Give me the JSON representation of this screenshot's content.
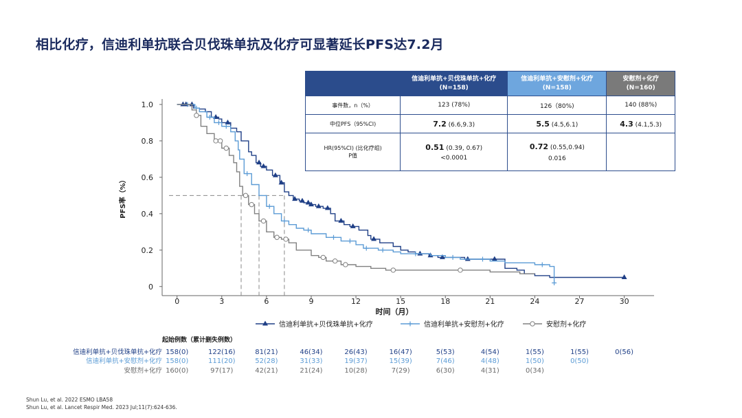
{
  "title": "相比化疗，信迪利单抗联合贝伐珠单抗及化疗可显著延长PFS达7.2月",
  "stats_table": {
    "headers": [
      "信迪利单抗+贝伐珠单抗+化疗",
      "(N=158)",
      "信迪利单抗+安慰剂+化疗",
      "(N=158)",
      "安慰剂+化疗",
      "(N=160)"
    ],
    "rows": [
      {
        "label": "事件数，n（%）",
        "c1": "123 (78%)",
        "c2": "126（80%)",
        "c3": "140 (88%)"
      },
      {
        "label": "中位PFS（95%CI)",
        "c1_main": "7.2",
        "c1_ci": "(6.6,9.3)",
        "c2_main": "5.5",
        "c2_ci": "(4.5,6.1)",
        "c3_main": "4.3",
        "c3_ci": "(4.1,5.3)"
      },
      {
        "label": "HR(95%CI) (比化疗组)",
        "label2": "P值",
        "c1_main": "0.51",
        "c1_ci": "(0.39, 0.67)",
        "c1_p": "<0.0001",
        "c2_main": "0.72",
        "c2_ci": "(0.55,0.94)",
        "c2_p": "0.016"
      }
    ]
  },
  "chart_data": {
    "type": "line",
    "title": "",
    "xlabel": "时间（月）",
    "ylabel": "PFS率（%）",
    "xlim": [
      -1,
      32
    ],
    "ylim": [
      -0.05,
      1.03
    ],
    "x_ticks": [
      0,
      3,
      6,
      9,
      12,
      15,
      18,
      21,
      24,
      27,
      30
    ],
    "y_ticks": [
      0,
      0.2,
      0.4,
      0.6,
      0.8,
      1.0
    ],
    "y_tick_labels": [
      "0",
      "0.2",
      "0.4",
      "0.6",
      "0.8",
      "1.0"
    ],
    "medians": [
      {
        "group": "placebo",
        "x": 4.3,
        "y": 0.5
      },
      {
        "group": "ibi_placebo",
        "x": 5.5,
        "y": 0.5
      },
      {
        "group": "ibi_beva",
        "x": 7.2,
        "y": 0.5
      }
    ],
    "series": [
      {
        "name": "信迪利单抗+贝伐珠单抗+化疗",
        "key": "ibi_beva",
        "color": "#1f3f86",
        "marker": "triangle",
        "x": [
          0,
          1.1,
          1.5,
          1.9,
          2.3,
          2.8,
          3.0,
          3.6,
          4.0,
          4.3,
          4.8,
          5.0,
          5.3,
          5.6,
          6.0,
          6.4,
          6.9,
          7.2,
          7.5,
          7.8,
          8.2,
          8.5,
          8.9,
          9.3,
          9.8,
          10.3,
          10.6,
          11.2,
          11.6,
          12.2,
          12.8,
          13.0,
          13.6,
          14.5,
          15.0,
          15.5,
          16.0,
          16.9,
          17.5,
          18.0,
          19.3,
          20.0,
          21.0,
          21.3,
          22.0,
          22.8,
          23.3,
          24.0,
          25.0,
          28.0,
          30.0
        ],
        "y": [
          1.0,
          0.98,
          0.975,
          0.96,
          0.93,
          0.92,
          0.9,
          0.87,
          0.85,
          0.8,
          0.74,
          0.72,
          0.68,
          0.66,
          0.64,
          0.61,
          0.57,
          0.52,
          0.5,
          0.48,
          0.47,
          0.46,
          0.45,
          0.44,
          0.43,
          0.4,
          0.36,
          0.34,
          0.33,
          0.31,
          0.28,
          0.26,
          0.24,
          0.22,
          0.2,
          0.19,
          0.18,
          0.17,
          0.16,
          0.16,
          0.15,
          0.15,
          0.15,
          0.15,
          0.1,
          0.09,
          0.07,
          0.06,
          0.05,
          0.05,
          0.05
        ],
        "censor_x": [
          0.4,
          0.6,
          1.0,
          2.6,
          3.4,
          5.5,
          5.8,
          6.6,
          7.0,
          7.9,
          8.4,
          8.8,
          9.0,
          9.5,
          10.1,
          11.0,
          11.8,
          13.2,
          16.3,
          17.0,
          17.8,
          19.5,
          21.3,
          30.0
        ]
      },
      {
        "name": "信迪利单抗+安慰剂+化疗",
        "key": "ibi_placebo",
        "color": "#5b9bd5",
        "marker": "plus",
        "x": [
          0,
          1.2,
          1.5,
          2.0,
          2.5,
          3.0,
          3.6,
          3.9,
          4.1,
          4.2,
          4.5,
          5.0,
          5.5,
          6.0,
          6.5,
          7.0,
          7.5,
          8.0,
          8.5,
          9.0,
          10.0,
          11.0,
          12.0,
          12.5,
          13.5,
          14.5,
          15.0,
          17.0,
          18.0,
          19.0,
          20.0,
          21.0,
          22.0,
          24.0,
          25.0,
          25.3
        ],
        "y": [
          1.0,
          0.98,
          0.96,
          0.93,
          0.9,
          0.88,
          0.85,
          0.8,
          0.75,
          0.7,
          0.62,
          0.56,
          0.5,
          0.44,
          0.4,
          0.36,
          0.34,
          0.32,
          0.31,
          0.29,
          0.27,
          0.25,
          0.23,
          0.21,
          0.2,
          0.19,
          0.18,
          0.17,
          0.16,
          0.15,
          0.15,
          0.14,
          0.13,
          0.12,
          0.11,
          0.02
        ],
        "censor_x": [
          0.7,
          1.3,
          2.2,
          2.8,
          3.3,
          4.7,
          6.2,
          7.2,
          8.8,
          10.5,
          11.6,
          12.7,
          13.8,
          16.0,
          18.5,
          20.5,
          24.5,
          25.3
        ]
      },
      {
        "name": "安慰剂+化疗",
        "key": "placebo",
        "color": "#808080",
        "marker": "circle",
        "x": [
          0,
          1.0,
          1.3,
          1.6,
          2.0,
          2.5,
          3.0,
          3.5,
          3.8,
          4.0,
          4.2,
          4.4,
          4.8,
          5.2,
          5.5,
          6.0,
          6.5,
          7.0,
          7.5,
          8.0,
          9.0,
          9.5,
          10.0,
          11.0,
          12.0,
          13.0,
          14.0,
          16.0,
          18.0,
          21.0,
          23.0,
          24.0
        ],
        "y": [
          1.0,
          0.97,
          0.94,
          0.88,
          0.84,
          0.8,
          0.76,
          0.72,
          0.68,
          0.63,
          0.55,
          0.5,
          0.45,
          0.4,
          0.36,
          0.3,
          0.27,
          0.26,
          0.24,
          0.2,
          0.17,
          0.16,
          0.14,
          0.12,
          0.11,
          0.1,
          0.09,
          0.09,
          0.09,
          0.08,
          0.07,
          0.07
        ],
        "censor_x": [
          1.3,
          2.6,
          2.9,
          3.3,
          4.6,
          5.0,
          5.8,
          6.7,
          7.3,
          9.8,
          10.6,
          11.3,
          14.5,
          19.0
        ]
      }
    ],
    "legend": [
      "信迪利单抗+贝伐珠单抗+化疗",
      "信迪利单抗+安慰剂+化疗",
      "安慰剂+化疗"
    ]
  },
  "risk_table": {
    "header": "起始例数（累计删失例数）",
    "rows": [
      {
        "label": "信迪利单抗+贝伐珠单抗+化疗",
        "color": "#1f3f86",
        "values": [
          "158(0)",
          "122(16)",
          "81(21)",
          "46(34)",
          "26(43)",
          "16(47)",
          "5(53)",
          "4(54)",
          "1(55)",
          "1(55)",
          "0(56)"
        ]
      },
      {
        "label": "信迪利单抗+安慰剂+化疗",
        "color": "#5b9bd5",
        "values": [
          "158(0)",
          "111(20)",
          "52(28)",
          "31(33)",
          "19(37)",
          "15(39)",
          "7(46)",
          "4(48)",
          "1(50)",
          "0(50)"
        ]
      },
      {
        "label": "安慰剂+化疗",
        "color": "#6a6a6a",
        "values": [
          "160(0)",
          "97(17)",
          "42(21)",
          "21(24)",
          "10(28)",
          "7(29)",
          "6(30)",
          "4(31)",
          "0(34)"
        ]
      }
    ]
  },
  "footnotes": [
    "Shun Lu, et al. 2022 ESMO LBA58",
    "Shun Lu, et al. Lancet Respir Med. 2023 Jul;11(7):624-636."
  ]
}
